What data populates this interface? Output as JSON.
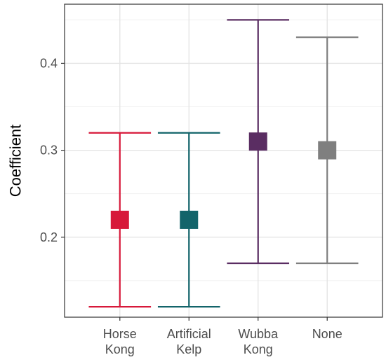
{
  "chart_data": {
    "type": "errorbar",
    "title": "",
    "xlabel": "",
    "ylabel": "Coefficient",
    "ylim": [
      0.108,
      0.468
    ],
    "yticks": [
      0.2,
      0.3,
      0.4
    ],
    "ytick_labels": [
      "0.2",
      "0.3",
      "0.4"
    ],
    "grid": true,
    "points": [
      {
        "category": "Horse Kong",
        "label_lines": [
          "Horse",
          "Kong"
        ],
        "estimate": 0.22,
        "lower": 0.12,
        "upper": 0.32,
        "color": "#d7193a"
      },
      {
        "category": "Artificial Kelp",
        "label_lines": [
          "Artificial",
          "Kelp"
        ],
        "estimate": 0.22,
        "lower": 0.12,
        "upper": 0.32,
        "color": "#13646a"
      },
      {
        "category": "Wubba Kong",
        "label_lines": [
          "Wubba",
          "Kong"
        ],
        "estimate": 0.31,
        "lower": 0.17,
        "upper": 0.45,
        "color": "#5a2d62"
      },
      {
        "category": "None",
        "label_lines": [
          "None"
        ],
        "estimate": 0.3,
        "lower": 0.17,
        "upper": 0.43,
        "color": "#7f7f7f"
      }
    ]
  }
}
